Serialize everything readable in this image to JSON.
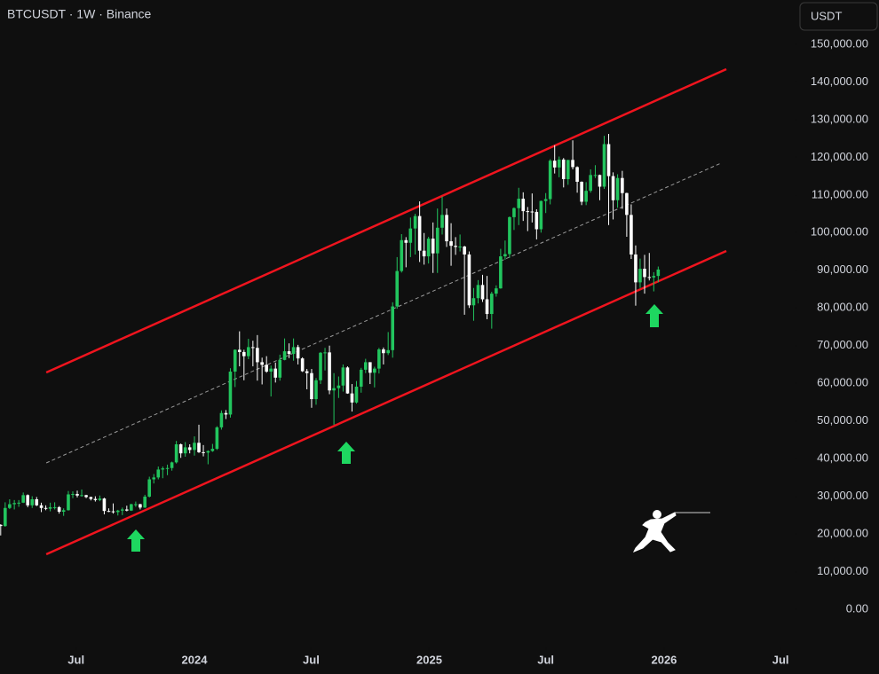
{
  "chart_data": {
    "type": "candlestick",
    "title": "BTCUSDT · 1W · Binance",
    "currency": "USDT",
    "up_color": "#22c55e",
    "down_color": "#ffffff",
    "channel_color": "#f0141e",
    "mid_color": "#9a9a9a",
    "xlim": [
      2023.172,
      2026.556
    ],
    "xticks": [
      {
        "value": 2023.496,
        "label": "Jul"
      },
      2024,
      {
        "value": 2024.497,
        "label": "Jul"
      },
      2025,
      {
        "value": 2025.496,
        "label": "Jul"
      },
      2026,
      {
        "value": 2026.496,
        "label": "Jul"
      }
    ],
    "ylim": [
      -10120,
      161760
    ],
    "yticks": [
      {
        "value": 0,
        "label": "0.00"
      },
      {
        "value": 10000,
        "label": "10,000.00"
      },
      {
        "value": 20000,
        "label": "20,000.00"
      },
      {
        "value": 30000,
        "label": "30,000.00"
      },
      {
        "value": 40000,
        "label": "40,000.00"
      },
      {
        "value": 50000,
        "label": "50,000.00"
      },
      {
        "value": 60000,
        "label": "60,000.00"
      },
      {
        "value": 70000,
        "label": "70,000.00"
      },
      {
        "value": 80000,
        "label": "80,000.00"
      },
      {
        "value": 90000,
        "label": "90,000.00"
      },
      {
        "value": 100000,
        "label": "100,000.00"
      },
      {
        "value": 110000,
        "label": "110,000.00"
      },
      {
        "value": 120000,
        "label": "120,000.00"
      },
      {
        "value": 130000,
        "label": "130,000.00"
      },
      {
        "value": 140000,
        "label": "140,000.00"
      },
      {
        "value": 150000,
        "label": "150,000.00"
      }
    ],
    "channel": {
      "upper": {
        "x": [
          2023.369,
          2026.265
        ],
        "y": [
          62870,
          143400
        ]
      },
      "lower": {
        "x": [
          2023.369,
          2026.265
        ],
        "y": [
          14600,
          95130
        ]
      },
      "middle": {
        "x": [
          2023.369,
          2026.242
        ],
        "y": [
          38850,
          118440
        ]
      }
    },
    "x": [
      2023.175,
      2023.194,
      2023.213,
      2023.233,
      2023.252,
      2023.271,
      2023.29,
      2023.309,
      2023.328,
      2023.348,
      2023.367,
      2023.386,
      2023.405,
      2023.424,
      2023.443,
      2023.463,
      2023.482,
      2023.501,
      2023.52,
      2023.539,
      2023.559,
      2023.578,
      2023.597,
      2023.616,
      2023.635,
      2023.654,
      2023.674,
      2023.693,
      2023.712,
      2023.731,
      2023.75,
      2023.769,
      2023.789,
      2023.808,
      2023.827,
      2023.846,
      2023.865,
      2023.885,
      2023.904,
      2023.923,
      2023.942,
      2023.961,
      2023.98,
      2024.0,
      2024.019,
      2024.038,
      2024.058,
      2024.077,
      2024.096,
      2024.115,
      2024.134,
      2024.153,
      2024.173,
      2024.192,
      2024.211,
      2024.23,
      2024.249,
      2024.268,
      2024.288,
      2024.307,
      2024.326,
      2024.345,
      2024.364,
      2024.384,
      2024.403,
      2024.422,
      2024.441,
      2024.46,
      2024.479,
      2024.499,
      2024.518,
      2024.537,
      2024.556,
      2024.575,
      2024.594,
      2024.614,
      2024.633,
      2024.652,
      2024.671,
      2024.69,
      2024.71,
      2024.729,
      2024.748,
      2024.767,
      2024.786,
      2024.805,
      2024.825,
      2024.844,
      2024.863,
      2024.882,
      2024.901,
      2024.92,
      2024.94,
      2024.959,
      2024.978,
      2024.997,
      2025.016,
      2025.035,
      2025.055,
      2025.074,
      2025.093,
      2025.112,
      2025.131,
      2025.15,
      2025.17,
      2025.189,
      2025.208,
      2025.227,
      2025.246,
      2025.266,
      2025.285,
      2025.304,
      2025.323,
      2025.342,
      2025.361,
      2025.381,
      2025.4,
      2025.419,
      2025.438,
      2025.457,
      2025.476,
      2025.496,
      2025.515,
      2025.534,
      2025.553,
      2025.572,
      2025.591,
      2025.611,
      2025.63,
      2025.649,
      2025.668,
      2025.687,
      2025.707,
      2025.726,
      2025.745,
      2025.764,
      2025.783,
      2025.802,
      2025.822,
      2025.841,
      2025.86,
      2025.879,
      2025.898,
      2025.917,
      2025.937,
      2025.956,
      2025.975
    ],
    "candles": [
      [
        22400,
        22600,
        19600,
        22100
      ],
      [
        22100,
        28400,
        21900,
        26900
      ],
      [
        26900,
        29200,
        26600,
        27900
      ],
      [
        27900,
        29000,
        26500,
        28200
      ],
      [
        28200,
        29000,
        27200,
        28300
      ],
      [
        28300,
        31000,
        28200,
        30300
      ],
      [
        30300,
        30500,
        27100,
        27600
      ],
      [
        27600,
        30000,
        26900,
        29200
      ],
      [
        29200,
        29800,
        27400,
        27600
      ],
      [
        27600,
        28300,
        25800,
        26900
      ],
      [
        26900,
        27600,
        26300,
        26700
      ],
      [
        26700,
        28300,
        26000,
        27100
      ],
      [
        27100,
        28400,
        26500,
        27100
      ],
      [
        27100,
        27400,
        25400,
        25900
      ],
      [
        25900,
        26800,
        24800,
        26300
      ],
      [
        26300,
        31400,
        26200,
        30500
      ],
      [
        30500,
        31300,
        29500,
        30600
      ],
      [
        30600,
        31500,
        29700,
        30200
      ],
      [
        30200,
        31800,
        29900,
        30300
      ],
      [
        30300,
        30400,
        29500,
        29800
      ],
      [
        29800,
        29900,
        28900,
        29300
      ],
      [
        29300,
        30000,
        28600,
        29000
      ],
      [
        29000,
        30200,
        28700,
        29400
      ],
      [
        29400,
        29600,
        25200,
        26100
      ],
      [
        26100,
        26800,
        25800,
        26000
      ],
      [
        26000,
        28100,
        25400,
        25800
      ],
      [
        25800,
        26400,
        24900,
        26200
      ],
      [
        26200,
        27000,
        25000,
        26500
      ],
      [
        26500,
        27500,
        26000,
        26200
      ],
      [
        26200,
        28000,
        26100,
        27900
      ],
      [
        27900,
        28600,
        27200,
        27900
      ],
      [
        27900,
        28000,
        26500,
        27000
      ],
      [
        27000,
        30400,
        26900,
        29900
      ],
      [
        29900,
        35200,
        29700,
        34500
      ],
      [
        34500,
        35900,
        33400,
        35000
      ],
      [
        35000,
        37900,
        34500,
        37100
      ],
      [
        37100,
        37900,
        34800,
        37400
      ],
      [
        37400,
        38400,
        35600,
        37500
      ],
      [
        37500,
        39200,
        36800,
        39000
      ],
      [
        39000,
        44700,
        38700,
        43800
      ],
      [
        43800,
        44000,
        40200,
        41400
      ],
      [
        41400,
        44400,
        40500,
        43000
      ],
      [
        43000,
        43800,
        41400,
        42300
      ],
      [
        42300,
        45900,
        40800,
        44200
      ],
      [
        44200,
        49000,
        41500,
        41700
      ],
      [
        41700,
        43600,
        40600,
        41600
      ],
      [
        41600,
        42200,
        38500,
        42000
      ],
      [
        42000,
        43900,
        41800,
        42600
      ],
      [
        42600,
        48600,
        42300,
        48300
      ],
      [
        48300,
        52800,
        47700,
        52100
      ],
      [
        52100,
        52900,
        50500,
        51700
      ],
      [
        51700,
        64000,
        50900,
        63100
      ],
      [
        63100,
        69000,
        59000,
        68900
      ],
      [
        68900,
        73800,
        64500,
        68300
      ],
      [
        68300,
        68900,
        60800,
        67200
      ],
      [
        67200,
        71800,
        66400,
        69600
      ],
      [
        69600,
        71300,
        64500,
        69400
      ],
      [
        69400,
        72800,
        60700,
        65600
      ],
      [
        65600,
        66800,
        59700,
        64900
      ],
      [
        64900,
        67200,
        62800,
        63100
      ],
      [
        63100,
        64700,
        56500,
        63900
      ],
      [
        63900,
        65500,
        60200,
        61500
      ],
      [
        61500,
        67600,
        60700,
        66200
      ],
      [
        66200,
        71900,
        66100,
        68500
      ],
      [
        68500,
        70600,
        66700,
        67800
      ],
      [
        67800,
        71900,
        66000,
        69600
      ],
      [
        69600,
        70200,
        65000,
        66600
      ],
      [
        66600,
        66900,
        63000,
        63200
      ],
      [
        63200,
        63800,
        58400,
        62700
      ],
      [
        62700,
        63800,
        53500,
        55800
      ],
      [
        55800,
        61400,
        54300,
        60800
      ],
      [
        60800,
        68300,
        59800,
        68100
      ],
      [
        68100,
        69400,
        63400,
        68200
      ],
      [
        68200,
        70000,
        57100,
        58100
      ],
      [
        58100,
        62700,
        49000,
        58700
      ],
      [
        58700,
        61800,
        56100,
        59400
      ],
      [
        59400,
        65000,
        57800,
        64200
      ],
      [
        64200,
        64500,
        57200,
        57300
      ],
      [
        57300,
        59800,
        52500,
        54900
      ],
      [
        54900,
        60600,
        54600,
        59100
      ],
      [
        59100,
        64100,
        57500,
        63600
      ],
      [
        63600,
        66500,
        62700,
        65600
      ],
      [
        65600,
        65600,
        59800,
        62800
      ],
      [
        62800,
        64400,
        58900,
        63900
      ],
      [
        63900,
        69400,
        62600,
        69000
      ],
      [
        69000,
        69500,
        65000,
        68000
      ],
      [
        68000,
        73600,
        67500,
        68800
      ],
      [
        68800,
        81500,
        66800,
        80400
      ],
      [
        80400,
        93500,
        79800,
        89800
      ],
      [
        89800,
        99600,
        89400,
        98000
      ],
      [
        98000,
        98800,
        90800,
        97300
      ],
      [
        97300,
        104000,
        93500,
        101100
      ],
      [
        101100,
        105000,
        94200,
        104400
      ],
      [
        104400,
        108300,
        92200,
        95200
      ],
      [
        95200,
        99900,
        91500,
        93700
      ],
      [
        93700,
        98900,
        91800,
        98400
      ],
      [
        98400,
        102700,
        89300,
        94500
      ],
      [
        94500,
        106400,
        89300,
        101300
      ],
      [
        101300,
        109600,
        99500,
        104700
      ],
      [
        104700,
        106400,
        96200,
        97700
      ],
      [
        97700,
        102500,
        91200,
        96500
      ],
      [
        96500,
        98800,
        94100,
        96200
      ],
      [
        96200,
        99500,
        95000,
        96300
      ],
      [
        96300,
        96500,
        78200,
        94200
      ],
      [
        94200,
        95000,
        80000,
        80700
      ],
      [
        80700,
        85300,
        76600,
        82600
      ],
      [
        82600,
        87400,
        81200,
        86100
      ],
      [
        86100,
        88800,
        81600,
        82300
      ],
      [
        82300,
        88500,
        77000,
        78400
      ],
      [
        78400,
        84300,
        74500,
        83800
      ],
      [
        83800,
        86000,
        83000,
        85200
      ],
      [
        85200,
        95700,
        85100,
        93700
      ],
      [
        93700,
        97900,
        92800,
        94300
      ],
      [
        94300,
        104300,
        93300,
        104100
      ],
      [
        104100,
        106700,
        100700,
        106500
      ],
      [
        106500,
        111900,
        102000,
        109000
      ],
      [
        109000,
        110700,
        103100,
        105700
      ],
      [
        105700,
        106800,
        100400,
        105600
      ],
      [
        105600,
        110400,
        102700,
        105500
      ],
      [
        105500,
        106200,
        98200,
        100900
      ],
      [
        100900,
        108500,
        100000,
        108400
      ],
      [
        108400,
        110500,
        105200,
        108900
      ],
      [
        108900,
        119500,
        107500,
        119100
      ],
      [
        119100,
        123200,
        115700,
        117300
      ],
      [
        117300,
        120200,
        114700,
        119400
      ],
      [
        119400,
        119800,
        112000,
        114200
      ],
      [
        114200,
        119300,
        112700,
        119300
      ],
      [
        119300,
        124500,
        116800,
        117400
      ],
      [
        117400,
        117600,
        110600,
        113500
      ],
      [
        113500,
        113600,
        107300,
        108200
      ],
      [
        108200,
        113400,
        107300,
        111100
      ],
      [
        111100,
        116800,
        110600,
        115300
      ],
      [
        115300,
        117900,
        114500,
        115300
      ],
      [
        115300,
        115400,
        108600,
        112200
      ],
      [
        112200,
        125700,
        111600,
        123500
      ],
      [
        123500,
        126200,
        102000,
        115000
      ],
      [
        115000,
        116000,
        103500,
        108600
      ],
      [
        108600,
        115500,
        106600,
        114500
      ],
      [
        114500,
        116400,
        106300,
        110500
      ],
      [
        110500,
        110600,
        98900,
        104700
      ],
      [
        104700,
        107500,
        93000,
        94200
      ],
      [
        94200,
        96600,
        80600,
        86800
      ],
      [
        86800,
        93100,
        85300,
        90400
      ],
      [
        90400,
        94100,
        83800,
        88200
      ],
      [
        88200,
        94600,
        87300,
        88100
      ],
      [
        88100,
        89500,
        84400,
        88500
      ],
      [
        88500,
        91000,
        86800,
        90200
      ]
    ]
  }
}
